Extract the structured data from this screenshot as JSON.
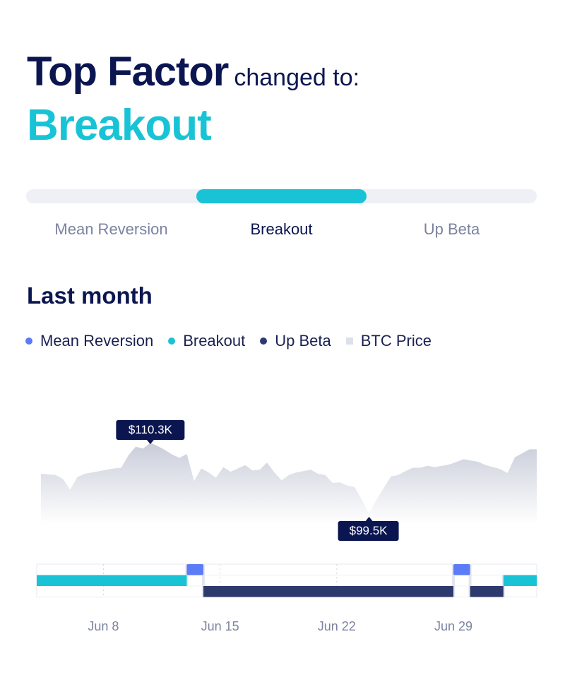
{
  "header": {
    "title": "Top Factor",
    "subtitle": "changed to:",
    "current_factor": "Breakout"
  },
  "selector": {
    "active_index": 1,
    "options": [
      "Mean Reversion",
      "Breakout",
      "Up Beta"
    ]
  },
  "section_title": "Last month",
  "legend": [
    {
      "label": "Mean Reversion",
      "color": "#5b7cf6",
      "shape": "dot"
    },
    {
      "label": "Breakout",
      "color": "#19c3d6",
      "shape": "dot"
    },
    {
      "label": "Up Beta",
      "color": "#2e3a6e",
      "shape": "dot"
    },
    {
      "label": "BTC Price",
      "color": "#dde0ea",
      "shape": "square"
    }
  ],
  "chart_data": [
    {
      "type": "area",
      "series": [
        {
          "name": "BTC Price",
          "color": "#c9cdd9"
        }
      ],
      "x": [
        0,
        0.5,
        1,
        1.5,
        2,
        2.5,
        3,
        3.5,
        4,
        4.5,
        5,
        5.5,
        6,
        6.5,
        7,
        7.5,
        8,
        8.5,
        9,
        9.5,
        10,
        10.5,
        11,
        11.5,
        12,
        12.5,
        13,
        13.5,
        14,
        14.5,
        15,
        15.5,
        16,
        16.5,
        17,
        17.5,
        18,
        18.5,
        19,
        19.5,
        20,
        20.5,
        21,
        21.5,
        22,
        22.5,
        23,
        23.5,
        24,
        24.5,
        25,
        25.5,
        26,
        26.5,
        27,
        27.5,
        28,
        28.5,
        29,
        29.5,
        30,
        30.5,
        31,
        31.5,
        32,
        32.5,
        33,
        33.5,
        34
      ],
      "y": [
        105.6,
        105.5,
        105.4,
        104.8,
        103.2,
        105.1,
        105.6,
        105.8,
        106.0,
        106.2,
        106.4,
        106.5,
        108.4,
        109.7,
        109.4,
        110.3,
        109.8,
        109.2,
        108.5,
        108.0,
        108.6,
        104.5,
        106.4,
        105.8,
        105.0,
        106.6,
        105.9,
        106.4,
        106.9,
        106.1,
        106.2,
        107.3,
        105.8,
        104.6,
        105.4,
        105.8,
        106.0,
        106.2,
        105.6,
        105.4,
        104.2,
        104.3,
        103.8,
        103.6,
        101.7,
        99.5,
        101.6,
        103.4,
        105.2,
        105.4,
        106.0,
        106.5,
        106.5,
        106.8,
        106.6,
        106.8,
        107.0,
        107.4,
        107.8,
        107.6,
        107.4,
        106.9,
        106.6,
        106.3,
        105.7,
        108.1,
        108.7,
        109.3,
        109.3
      ],
      "annotations": [
        {
          "label": "$110.3K",
          "x": 7.5,
          "y": 110.3
        },
        {
          "label": "$99.5K",
          "x": 22.5,
          "y": 99.5
        }
      ]
    },
    {
      "type": "timeline",
      "categories": [
        "Mean Reversion",
        "Breakout",
        "Up Beta"
      ],
      "xticks": [
        {
          "x": 4,
          "label": "Jun 8"
        },
        {
          "x": 11,
          "label": "Jun 15"
        },
        {
          "x": 18,
          "label": "Jun 22"
        },
        {
          "x": 25,
          "label": "Jun 29"
        }
      ],
      "segments": [
        {
          "factor": "Breakout",
          "start": 0,
          "end": 9
        },
        {
          "factor": "Mean Reversion",
          "start": 9,
          "end": 10
        },
        {
          "factor": "Up Beta",
          "start": 10,
          "end": 25
        },
        {
          "factor": "Mean Reversion",
          "start": 25,
          "end": 26
        },
        {
          "factor": "Up Beta",
          "start": 26,
          "end": 28
        },
        {
          "factor": "Breakout",
          "start": 28,
          "end": 30
        }
      ],
      "colors": {
        "Mean Reversion": "#5b7cf6",
        "Breakout": "#19c3d6",
        "Up Beta": "#2e3a6e"
      }
    }
  ]
}
